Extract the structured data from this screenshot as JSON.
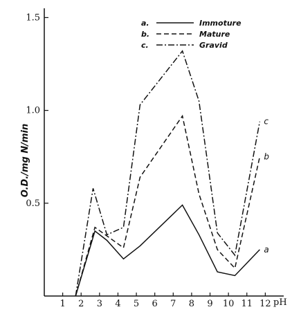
{
  "chart_data": {
    "type": "line",
    "xlabel": "pH",
    "ylabel": "O.D./mg N/min",
    "xlim": [
      0,
      13
    ],
    "ylim": [
      0,
      1.55
    ],
    "x_ticks": [
      1,
      2,
      3,
      4,
      5,
      6,
      7,
      8,
      9,
      10,
      11,
      12
    ],
    "y_ticks": [
      0.5,
      1.0,
      1.5
    ],
    "y_tick_labels": [
      "0.5",
      "1.0",
      "1.5"
    ],
    "legend_position": "top-center",
    "series": [
      {
        "name": "Immoture",
        "legend_key": "a.",
        "end_label": "a",
        "dash": "solid",
        "x": [
          1.7,
          2.75,
          3.4,
          4.3,
          5.2,
          7.5,
          8.4,
          9.4,
          10.35,
          11.7
        ],
        "y": [
          0.0,
          0.35,
          0.3,
          0.2,
          0.27,
          0.49,
          0.33,
          0.13,
          0.11,
          0.25
        ]
      },
      {
        "name": "Mature",
        "legend_key": "b.",
        "end_label": "b",
        "dash": "dashed",
        "x": [
          1.7,
          2.75,
          4.3,
          5.2,
          7.5,
          8.4,
          9.4,
          10.35,
          11.7
        ],
        "y": [
          0.0,
          0.37,
          0.26,
          0.64,
          0.97,
          0.55,
          0.25,
          0.15,
          0.75
        ]
      },
      {
        "name": "Gravid",
        "legend_key": "c.",
        "end_label": "c",
        "dash": "dashdot",
        "x": [
          1.7,
          2.65,
          3.4,
          4.3,
          5.2,
          7.5,
          8.4,
          9.4,
          10.35,
          11.7
        ],
        "y": [
          0.0,
          0.58,
          0.33,
          0.37,
          1.03,
          1.32,
          1.05,
          0.34,
          0.22,
          0.94
        ]
      }
    ]
  }
}
